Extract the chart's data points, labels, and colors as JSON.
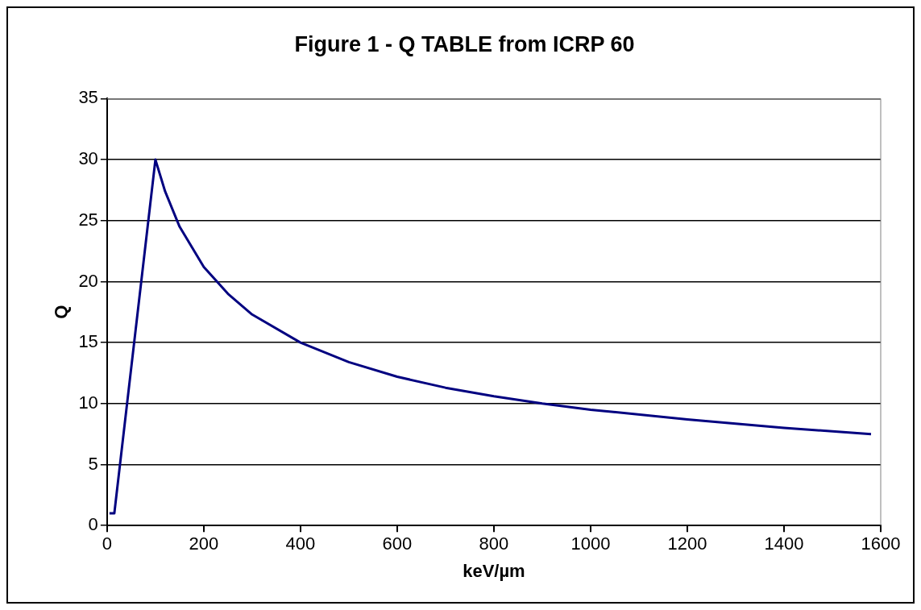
{
  "chart_data": {
    "type": "line",
    "title": "Figure 1 - Q TABLE from ICRP 60",
    "xlabel": "keV/µm",
    "ylabel": "Q",
    "series": [
      {
        "color": "#000080",
        "x": [
          5,
          15,
          100,
          120,
          150,
          200,
          250,
          300,
          400,
          500,
          600,
          700,
          800,
          900,
          1000,
          1200,
          1400,
          1580
        ],
        "values": [
          1,
          1,
          30,
          27.4,
          24.5,
          21.2,
          19,
          17.3,
          15,
          13.4,
          12.2,
          11.3,
          10.6,
          10,
          9.5,
          8.7,
          8,
          7.5
        ]
      }
    ],
    "xlim": [
      0,
      1600
    ],
    "xticks": [
      0,
      200,
      400,
      600,
      800,
      1000,
      1200,
      1400,
      1600
    ],
    "ylim": [
      0,
      35
    ],
    "yticks": [
      0,
      5,
      10,
      15,
      20,
      25,
      30,
      35
    ],
    "grid": "y",
    "legend": false,
    "marker": "none",
    "line_style": "solid"
  }
}
